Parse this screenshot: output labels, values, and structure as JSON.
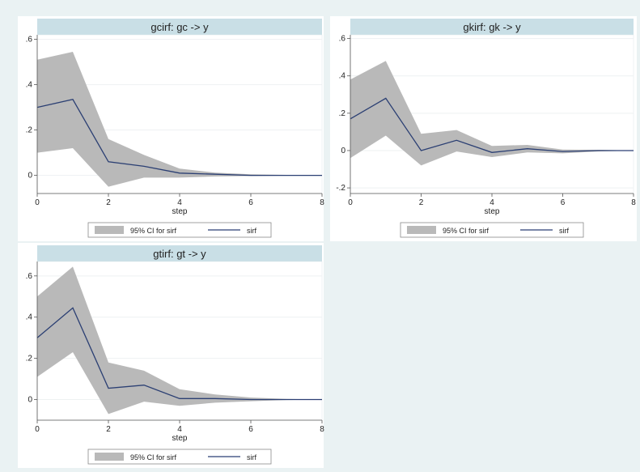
{
  "page": {
    "background": "#eaf2f3",
    "panel_title_bg": "#c9dfe6"
  },
  "chart_data": [
    {
      "type": "area",
      "title": "gcirf: gc -> y",
      "xlabel": "step",
      "ylabel": "",
      "xlim": [
        0,
        8
      ],
      "ylim": [
        -0.08,
        0.62
      ],
      "xticks": [
        0,
        2,
        4,
        6,
        8
      ],
      "yticks": [
        0,
        0.2,
        0.4,
        0.6
      ],
      "ytick_labels": [
        "0",
        ".2",
        ".4",
        ".6"
      ],
      "grid": true,
      "legend": "bottom",
      "legend_entries": [
        "95% CI for sirf",
        "sirf"
      ],
      "x": [
        0,
        1,
        2,
        3,
        4,
        5,
        6,
        7,
        8
      ],
      "series": [
        {
          "name": "sirf",
          "kind": "line",
          "color": "#2b3f73",
          "values": [
            0.3,
            0.335,
            0.06,
            0.04,
            0.01,
            0.005,
            0.0,
            0.0,
            0.0
          ]
        },
        {
          "name": "95% CI for sirf",
          "kind": "band",
          "color": "#b9b9b9",
          "lower": [
            0.1,
            0.12,
            -0.05,
            -0.01,
            -0.01,
            -0.005,
            -0.003,
            -0.001,
            0.0
          ],
          "upper": [
            0.51,
            0.545,
            0.16,
            0.09,
            0.03,
            0.012,
            0.005,
            0.002,
            0.0
          ]
        }
      ]
    },
    {
      "type": "area",
      "title": "gkirf: gk -> y",
      "xlabel": "step",
      "ylabel": "",
      "xlim": [
        0,
        8
      ],
      "ylim": [
        -0.23,
        0.62
      ],
      "xticks": [
        0,
        2,
        4,
        6,
        8
      ],
      "yticks": [
        -0.2,
        0,
        0.2,
        0.4,
        0.6
      ],
      "ytick_labels": [
        "-.2",
        "0",
        ".2",
        ".4",
        ".6"
      ],
      "grid": true,
      "legend": "bottom",
      "legend_entries": [
        "95% CI for sirf",
        "sirf"
      ],
      "x": [
        0,
        1,
        2,
        3,
        4,
        5,
        6,
        7,
        8
      ],
      "series": [
        {
          "name": "sirf",
          "kind": "line",
          "color": "#2b3f73",
          "values": [
            0.17,
            0.28,
            0.0,
            0.055,
            -0.01,
            0.01,
            -0.005,
            0.0,
            0.0
          ]
        },
        {
          "name": "95% CI for sirf",
          "kind": "band",
          "color": "#b9b9b9",
          "lower": [
            -0.04,
            0.08,
            -0.08,
            -0.005,
            -0.035,
            -0.01,
            -0.015,
            -0.005,
            0.0
          ],
          "upper": [
            0.38,
            0.48,
            0.09,
            0.11,
            0.025,
            0.03,
            0.005,
            0.004,
            0.0
          ]
        }
      ]
    },
    {
      "type": "area",
      "title": "gtirf: gt -> y",
      "xlabel": "step",
      "ylabel": "",
      "xlim": [
        0,
        8
      ],
      "ylim": [
        -0.1,
        0.67
      ],
      "xticks": [
        0,
        2,
        4,
        6,
        8
      ],
      "yticks": [
        0,
        0.2,
        0.4,
        0.6
      ],
      "ytick_labels": [
        "0",
        ".2",
        ".4",
        ".6"
      ],
      "grid": true,
      "legend": "bottom",
      "legend_entries": [
        "95% CI for sirf",
        "sirf"
      ],
      "x": [
        0,
        1,
        2,
        3,
        4,
        5,
        6,
        7,
        8
      ],
      "series": [
        {
          "name": "sirf",
          "kind": "line",
          "color": "#2b3f73",
          "values": [
            0.3,
            0.445,
            0.055,
            0.07,
            0.005,
            0.005,
            0.0,
            0.0,
            0.0
          ]
        },
        {
          "name": "95% CI for sirf",
          "kind": "band",
          "color": "#b9b9b9",
          "lower": [
            0.11,
            0.23,
            -0.07,
            -0.01,
            -0.03,
            -0.015,
            -0.008,
            -0.002,
            0.0
          ],
          "upper": [
            0.5,
            0.645,
            0.18,
            0.14,
            0.05,
            0.025,
            0.01,
            0.003,
            0.0
          ]
        }
      ]
    }
  ]
}
